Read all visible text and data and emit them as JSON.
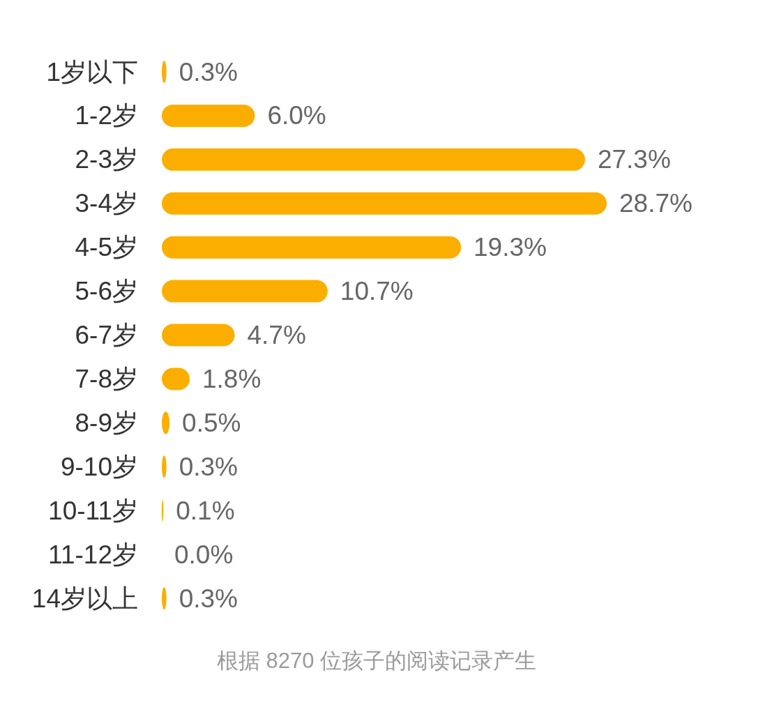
{
  "chart_data": {
    "type": "bar",
    "orientation": "horizontal",
    "categories": [
      "1岁以下",
      "1-2岁",
      "2-3岁",
      "3-4岁",
      "4-5岁",
      "5-6岁",
      "6-7岁",
      "7-8岁",
      "8-9岁",
      "9-10岁",
      "10-11岁",
      "11-12岁",
      "14岁以上"
    ],
    "values": [
      0.3,
      6.0,
      27.3,
      28.7,
      19.3,
      10.7,
      4.7,
      1.8,
      0.5,
      0.3,
      0.1,
      0.0,
      0.3
    ],
    "value_labels": [
      "0.3%",
      "6.0%",
      "27.3%",
      "28.7%",
      "19.3%",
      "10.7%",
      "4.7%",
      "1.8%",
      "0.5%",
      "0.3%",
      "0.1%",
      "0.0%",
      "0.3%"
    ],
    "color": "#fbae00",
    "annotations": [
      "根据 8270 位孩子的阅读记录产生"
    ]
  }
}
